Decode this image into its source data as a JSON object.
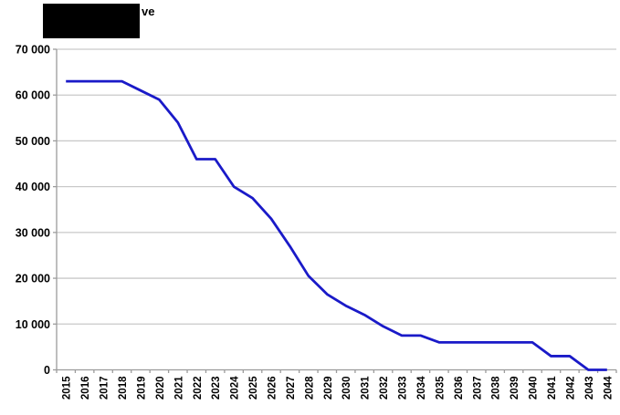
{
  "title": {
    "visible_text": "ve",
    "redacted": true
  },
  "chart_data": {
    "type": "line",
    "title": "(redacted — only the fragment 've' is visible)",
    "categories": [
      "2015",
      "2016",
      "2017",
      "2018",
      "2019",
      "2020",
      "2021",
      "2022",
      "2023",
      "2024",
      "2025",
      "2026",
      "2027",
      "2028",
      "2029",
      "2030",
      "2031",
      "2032",
      "2033",
      "2034",
      "2035",
      "2036",
      "2037",
      "2038",
      "2039",
      "2040",
      "2041",
      "2042",
      "2043",
      "2044"
    ],
    "series": [
      {
        "values": [
          63000,
          63000,
          63000,
          63000,
          61000,
          59000,
          54000,
          46000,
          46000,
          40000,
          37500,
          33000,
          27000,
          20500,
          16500,
          14000,
          12000,
          9500,
          7500,
          7500,
          6000,
          6000,
          6000,
          6000,
          6000,
          6000,
          3000,
          3000,
          0,
          0
        ]
      }
    ],
    "ylim": [
      0,
      70000
    ],
    "ytick_step": 10000,
    "yticks": [
      {
        "value": 0,
        "label": "0"
      },
      {
        "value": 10000,
        "label": "10 000"
      },
      {
        "value": 20000,
        "label": "20 000"
      },
      {
        "value": 30000,
        "label": "30 000"
      },
      {
        "value": 40000,
        "label": "40 000"
      },
      {
        "value": 50000,
        "label": "50 000"
      },
      {
        "value": 60000,
        "label": "60 000"
      },
      {
        "value": 70000,
        "label": "70 000"
      }
    ],
    "grid": "horizontal",
    "legend": "none",
    "colors": {
      "line": "#1A1AC8",
      "gridline": "#C9C9C9",
      "axis": "#9C9C9C",
      "tick": "#9C9C9C",
      "label_text": "#000000",
      "background": "#FFFFFF",
      "title_redaction": "#000000"
    }
  }
}
